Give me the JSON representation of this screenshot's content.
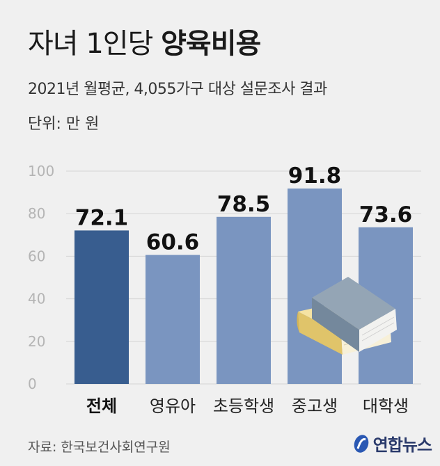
{
  "header": {
    "title_light": "자녀 1인당 ",
    "title_bold": "양육비용",
    "subtitle": "2021년 월평균, 4,055가구 대상 설문조사 결과",
    "unit": "단위: 만 원"
  },
  "footer": {
    "source": "자료: 한국보건사회연구원",
    "logo": "연합뉴스"
  },
  "colors": {
    "highlight_bar": "#385d8f",
    "bar": "#7a95c0",
    "axis_text": "#b4b4b4",
    "grid": "#d4d4d4"
  },
  "icons": [
    "books-illustration",
    "yonhap-logo-icon"
  ],
  "chart_data": {
    "type": "bar",
    "categories": [
      "전체",
      "영유아",
      "초등학생",
      "중고생",
      "대학생"
    ],
    "values": [
      72.1,
      60.6,
      78.5,
      91.8,
      73.6
    ],
    "value_labels": [
      "72.1",
      "60.6",
      "78.5",
      "91.8",
      "73.6"
    ],
    "highlight_index": 0,
    "ylim": [
      0,
      100
    ],
    "yticks": [
      0,
      20,
      40,
      60,
      80,
      100
    ],
    "title": "자녀 1인당 양육비용",
    "xlabel": "",
    "ylabel": "",
    "grid": true,
    "legend": "none"
  }
}
